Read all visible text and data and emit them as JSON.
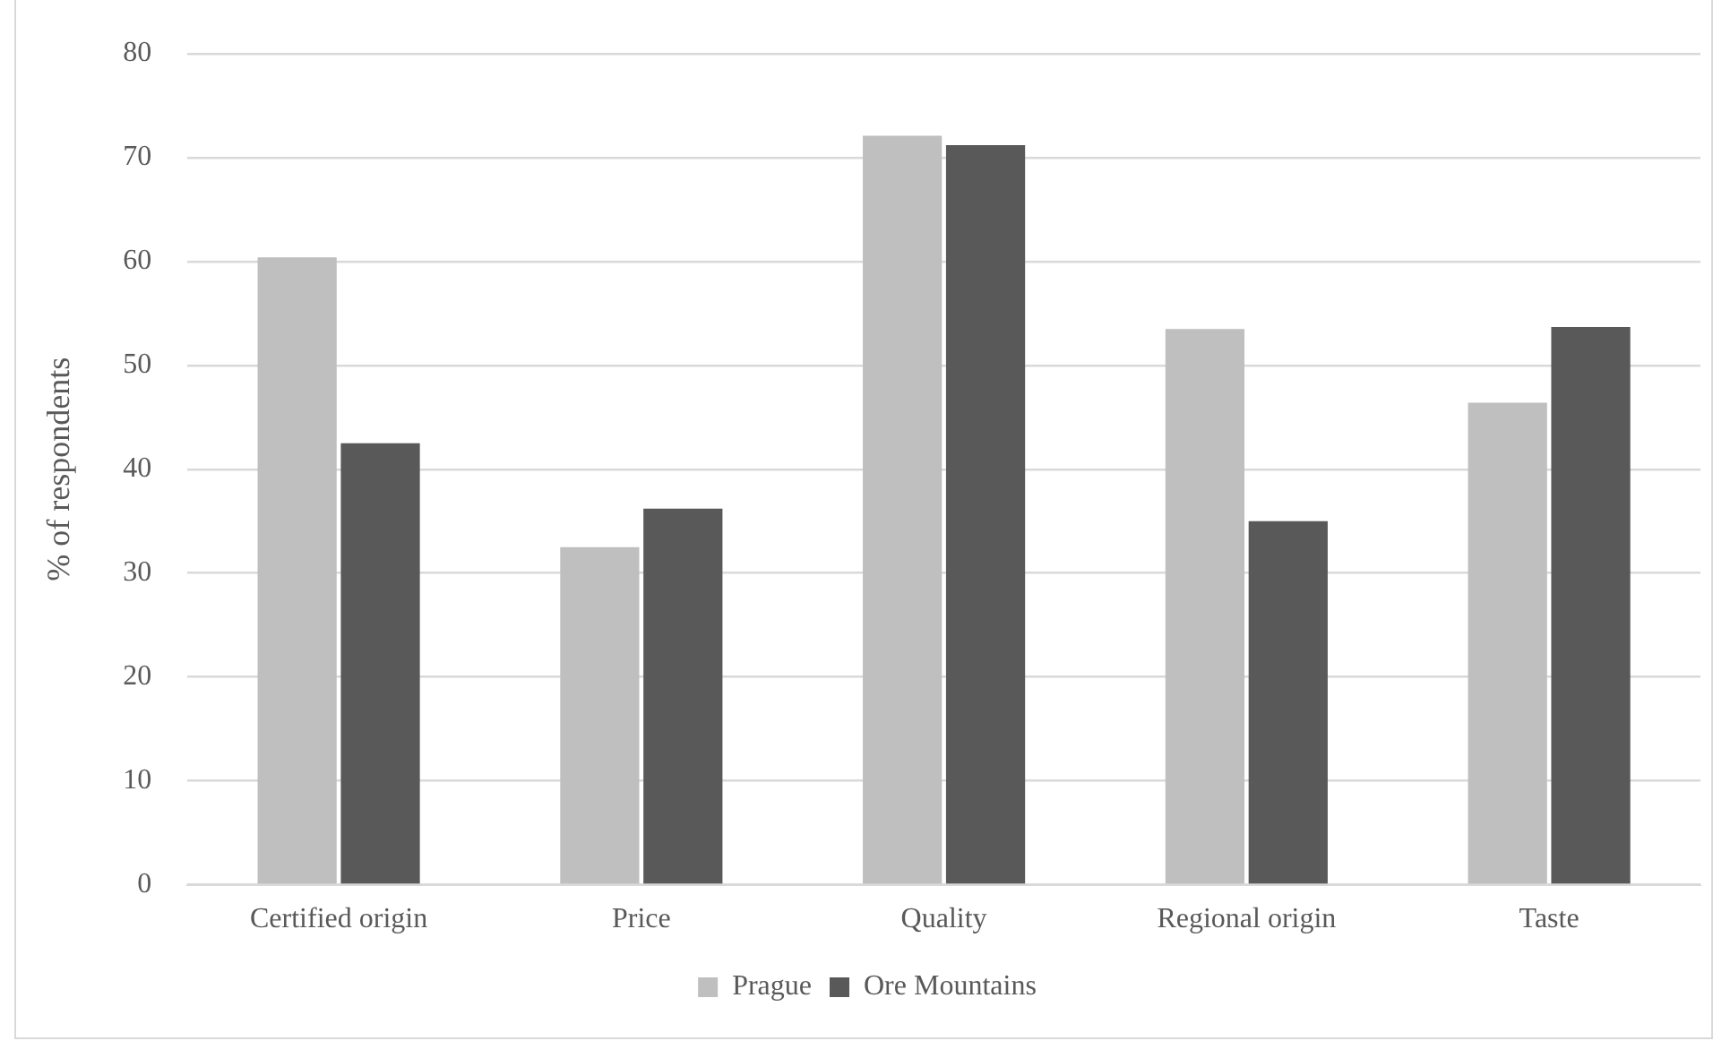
{
  "chart_data": {
    "type": "bar",
    "ylabel": "% of respondents",
    "categories": [
      "Certified origin",
      "Price",
      "Quality",
      "Regional origin",
      "Taste"
    ],
    "series": [
      {
        "name": "Prague",
        "color": "#bfbfbf",
        "values": [
          60.4,
          32.5,
          72.1,
          53.5,
          46.4
        ]
      },
      {
        "name": "Ore Mountains",
        "color": "#595959",
        "values": [
          42.5,
          36.2,
          71.2,
          35.0,
          53.7
        ]
      }
    ],
    "ylim": [
      0,
      80
    ],
    "yticks": [
      0,
      10,
      20,
      30,
      40,
      50,
      60,
      70,
      80
    ],
    "grid": "y",
    "legend": "bottom"
  }
}
